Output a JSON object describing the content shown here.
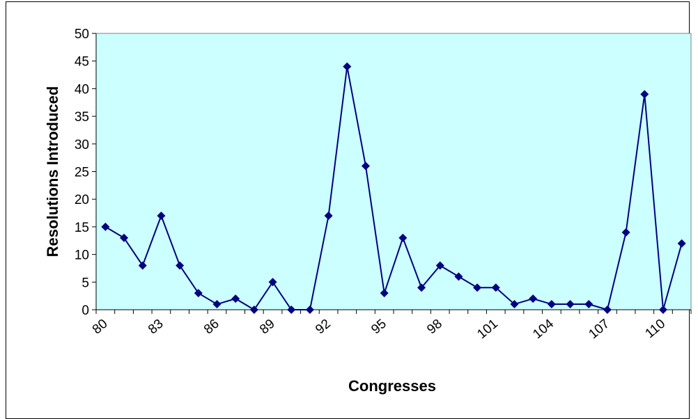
{
  "chart_data": {
    "type": "line",
    "xlabel": "Congresses",
    "ylabel": "Resolutions Introduced",
    "x": [
      80,
      81,
      82,
      83,
      84,
      85,
      86,
      87,
      88,
      89,
      90,
      91,
      92,
      93,
      94,
      95,
      96,
      97,
      98,
      99,
      100,
      101,
      102,
      103,
      104,
      105,
      106,
      107,
      108,
      109,
      110,
      111
    ],
    "x_tick_labels": [
      "80",
      "83",
      "86",
      "89",
      "92",
      "95",
      "98",
      "101",
      "104",
      "107",
      "110"
    ],
    "y_tick_labels": [
      "0",
      "5",
      "10",
      "15",
      "20",
      "25",
      "30",
      "35",
      "40",
      "45",
      "50"
    ],
    "ylim": [
      0,
      50
    ],
    "series": [
      {
        "values": [
          15,
          13,
          8,
          17,
          8,
          3,
          1,
          2,
          0,
          5,
          0,
          0,
          17,
          44,
          26,
          3,
          13,
          4,
          8,
          6,
          4,
          4,
          1,
          2,
          1,
          1,
          1,
          0,
          14,
          39,
          0,
          12
        ]
      }
    ],
    "grid": false,
    "legend": "none",
    "colors": {
      "plot_background": "#ccffff",
      "line": "#000080",
      "marker": "#000080"
    }
  }
}
